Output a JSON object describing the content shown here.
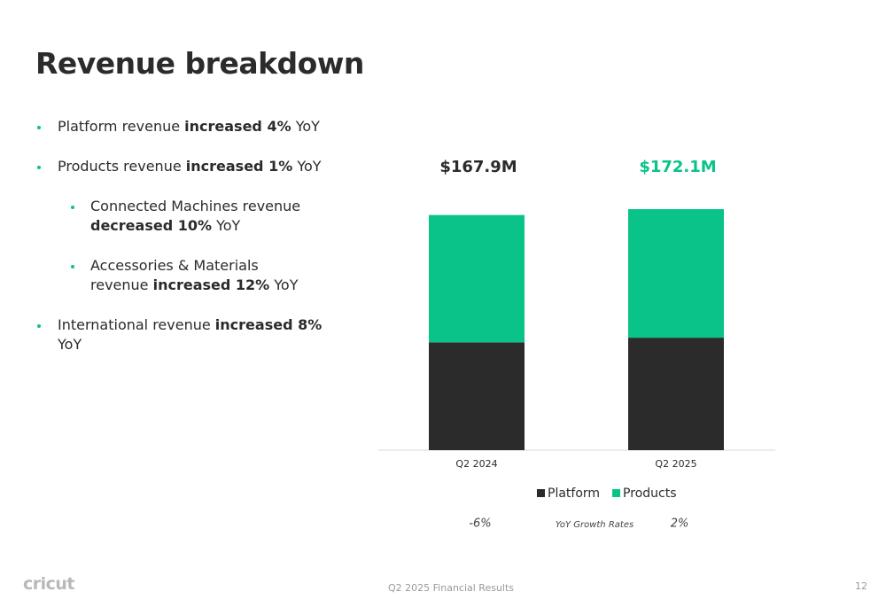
{
  "title": "Revenue breakdown",
  "bullets": [
    {
      "level": 1,
      "parts": [
        {
          "text": "Platform revenue "
        },
        {
          "text": "increased 4%",
          "bold": true
        },
        {
          "text": " YoY"
        }
      ]
    },
    {
      "level": 1,
      "parts": [
        {
          "text": "Products revenue "
        },
        {
          "text": "increased 1%",
          "bold": true
        },
        {
          "text": " YoY"
        }
      ]
    },
    {
      "level": 2,
      "parts": [
        {
          "text": "Connected Machines revenue "
        },
        {
          "text": "decreased 10%",
          "bold": true
        },
        {
          "text": " YoY"
        }
      ]
    },
    {
      "level": 2,
      "parts": [
        {
          "text": "Accessories & Materials revenue "
        },
        {
          "text": "increased 12%",
          "bold": true
        },
        {
          "text": " YoY"
        }
      ]
    },
    {
      "level": 1,
      "parts": [
        {
          "text": "International revenue "
        },
        {
          "text": "increased 8%",
          "bold": true
        },
        {
          "text": " YoY"
        }
      ]
    }
  ],
  "chart_data": {
    "type": "stacked_bar",
    "categories": [
      "Q2 2024",
      "Q2 2025"
    ],
    "series": [
      {
        "name": "Platform",
        "color": "#2b2b2b",
        "values": [
          77.0,
          80.3
        ]
      },
      {
        "name": "Products",
        "color": "#0ac389",
        "values": [
          90.9,
          91.8
        ]
      }
    ],
    "totals": {
      "values": [
        167.9,
        172.1
      ],
      "value_labels": [
        "$167.9M",
        "$172.1M"
      ],
      "colors": [
        "#2b2b2b",
        "#0ac389"
      ]
    },
    "growth": {
      "label": "YoY Growth Rates",
      "values": [
        -6,
        2
      ],
      "value_labels": [
        "-6%",
        "2%"
      ]
    }
  },
  "footer": {
    "logo": "cricut",
    "text": "Q2 2025 Financial Results",
    "page": "12"
  }
}
